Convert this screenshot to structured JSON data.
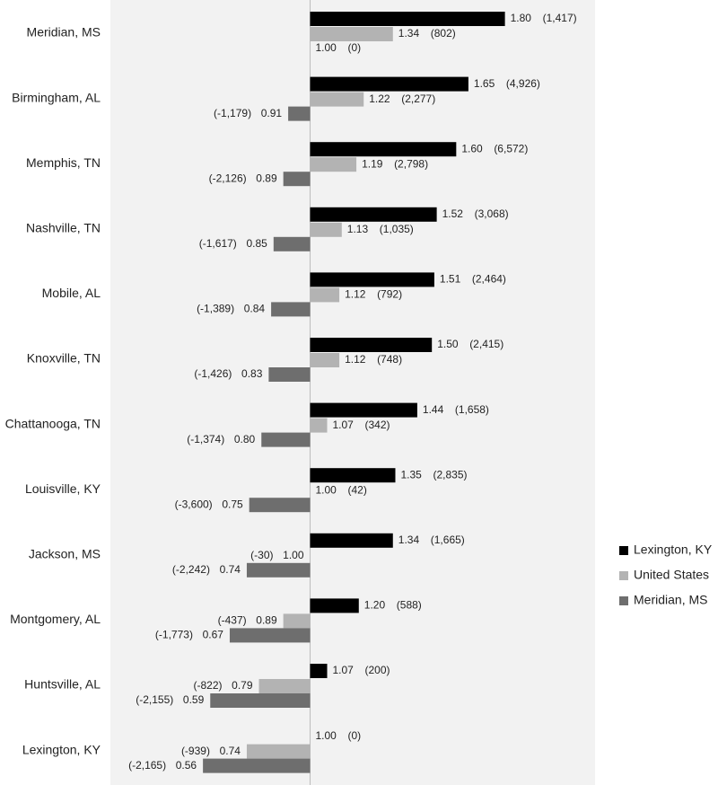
{
  "chart_data": {
    "type": "bar",
    "orientation": "horizontal",
    "categories": [
      "Meridian, MS",
      "Birmingham, AL",
      "Memphis, TN",
      "Nashville, TN",
      "Mobile, AL",
      "Knoxville, TN",
      "Chattanooga, TN",
      "Louisville, KY",
      "Jackson, MS",
      "Montgomery, AL",
      "Huntsville, AL",
      "Lexington, KY"
    ],
    "xlim": [
      0.18,
      2.17
    ],
    "bar_base": 1,
    "legend": "right",
    "series": [
      {
        "name": "Lexington, KY",
        "color": "#000000",
        "values": [
          1.8,
          1.65,
          1.6,
          1.52,
          1.51,
          1.5,
          1.44,
          1.35,
          1.34,
          1.2,
          1.07,
          1.0
        ],
        "value_labels": [
          "1.80",
          "1.65",
          "1.60",
          "1.52",
          "1.51",
          "1.50",
          "1.44",
          "1.35",
          "1.34",
          "1.20",
          "1.07",
          "1.00"
        ],
        "changes": [
          1417,
          4926,
          6572,
          3068,
          2464,
          2415,
          1658,
          2835,
          1665,
          588,
          200,
          0
        ],
        "change_labels": [
          "(1,417)",
          "(4,926)",
          "(6,572)",
          "(3,068)",
          "(2,464)",
          "(2,415)",
          "(1,658)",
          "(2,835)",
          "(1,665)",
          "(588)",
          "(200)",
          "(0)"
        ]
      },
      {
        "name": "United States",
        "color": "#b3b3b3",
        "values": [
          1.34,
          1.22,
          1.19,
          1.13,
          1.12,
          1.12,
          1.07,
          1.0,
          1.0,
          0.89,
          0.79,
          0.74
        ],
        "value_labels": [
          "1.34",
          "1.22",
          "1.19",
          "1.13",
          "1.12",
          "1.12",
          "1.07",
          "1.00",
          "1.00",
          "0.89",
          "0.79",
          "0.74"
        ],
        "changes": [
          802,
          2277,
          2798,
          1035,
          792,
          748,
          342,
          42,
          -30,
          -437,
          -822,
          -939
        ],
        "change_labels": [
          "(802)",
          "(2,277)",
          "(2,798)",
          "(1,035)",
          "(792)",
          "(748)",
          "(342)",
          "(42)",
          "(-30)",
          "(-437)",
          "(-822)",
          "(-939)"
        ]
      },
      {
        "name": "Meridian, MS",
        "color": "#6e6e6e",
        "values": [
          1.0,
          0.91,
          0.89,
          0.85,
          0.84,
          0.83,
          0.8,
          0.75,
          0.74,
          0.67,
          0.59,
          0.56
        ],
        "value_labels": [
          "1.00",
          "0.91",
          "0.89",
          "0.85",
          "0.84",
          "0.83",
          "0.80",
          "0.75",
          "0.74",
          "0.67",
          "0.59",
          "0.56"
        ],
        "changes": [
          0,
          -1179,
          -2126,
          -1617,
          -1389,
          -1426,
          -1374,
          -3600,
          -2242,
          -1773,
          -2155,
          -2165
        ],
        "change_labels": [
          "(0)",
          "(-1,179)",
          "(-2,126)",
          "(-1,617)",
          "(-1,389)",
          "(-1,426)",
          "(-1,374)",
          "(-3,600)",
          "(-2,242)",
          "(-1,773)",
          "(-2,155)",
          "(-2,165)"
        ]
      }
    ]
  }
}
